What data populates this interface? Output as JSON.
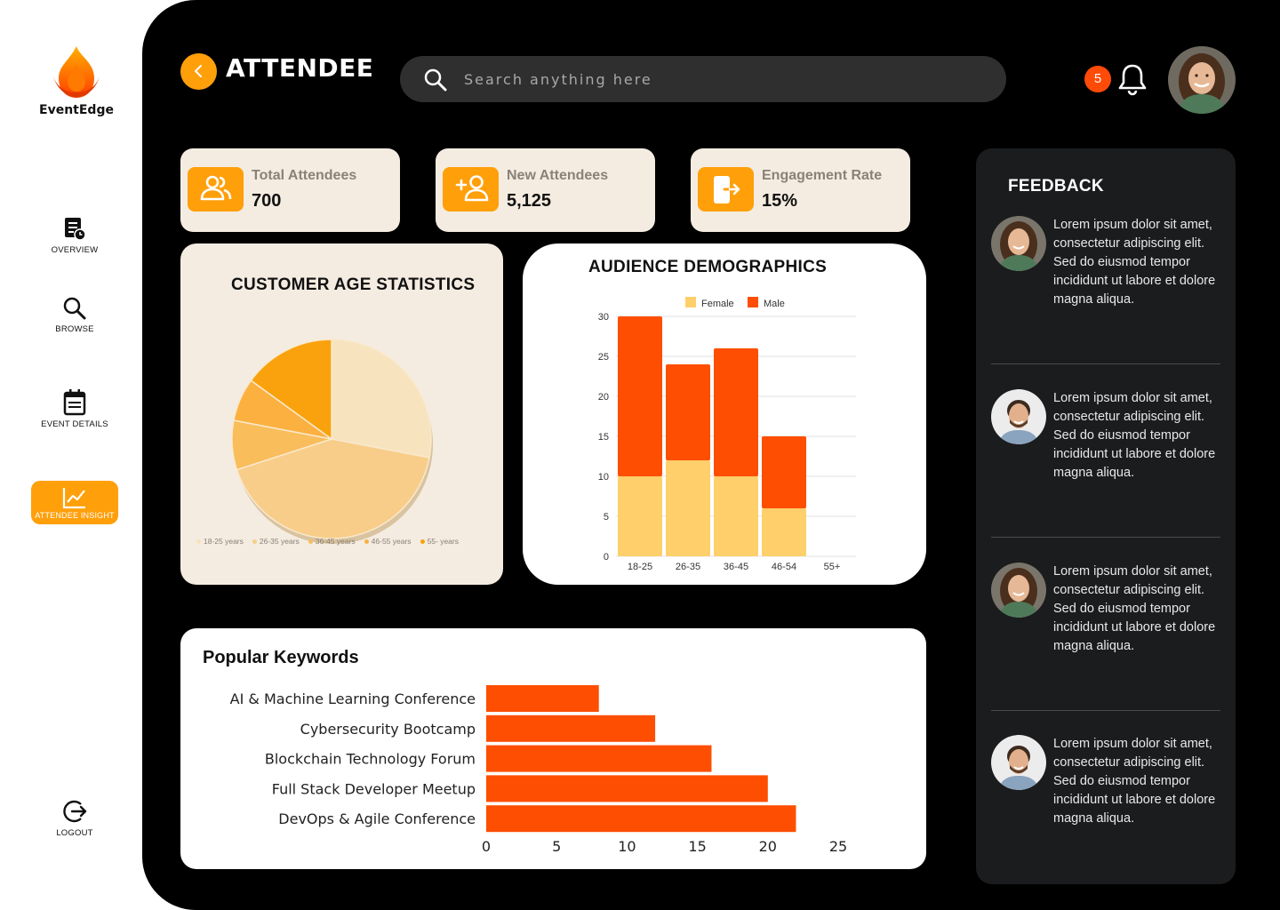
{
  "app": {
    "name": "EventEdge"
  },
  "sidebar": {
    "items": [
      {
        "label": "OVERVIEW"
      },
      {
        "label": "BROWSE"
      },
      {
        "label": "EVENT DETAILS"
      },
      {
        "label": "ATTENDEE INSIGHT",
        "active": true
      },
      {
        "label": "LOGOUT"
      }
    ]
  },
  "header": {
    "title": "ATTENDEE",
    "search_placeholder": "Search anything here",
    "notification_count": "5"
  },
  "stats": [
    {
      "label": "Total Attendees",
      "value": "700",
      "icon": "users-icon"
    },
    {
      "label": "New Attendees",
      "value": "5,125",
      "icon": "add-user-icon"
    },
    {
      "label": "Engagement Rate",
      "value": "15%",
      "icon": "exit-door-icon"
    }
  ],
  "age_panel": {
    "title": "CUSTOMER AGE STATISTICS"
  },
  "demo_panel": {
    "title": "AUDIENCE DEMOGRAPHICS"
  },
  "keywords_panel": {
    "title": "Popular Keywords"
  },
  "feedback": {
    "title": "FEEDBACK",
    "items": [
      {
        "text": "Lorem ipsum dolor sit amet, consectetur adipiscing elit. Sed do eiusmod tempor incididunt ut labore et dolore magna aliqua.",
        "avatar": "woman"
      },
      {
        "text": "Lorem ipsum dolor sit amet, consectetur adipiscing elit. Sed do eiusmod tempor incididunt ut labore et dolore magna aliqua.",
        "avatar": "man"
      },
      {
        "text": "Lorem ipsum dolor sit amet, consectetur adipiscing elit. Sed do eiusmod tempor incididunt ut labore et dolore magna aliqua.",
        "avatar": "woman"
      },
      {
        "text": "Lorem ipsum dolor sit amet, consectetur adipiscing elit. Sed do eiusmod tempor incididunt ut labore et dolore magna aliqua.",
        "avatar": "man"
      }
    ]
  },
  "colors": {
    "accent": "#ff9f0a",
    "alert": "#ff4a08",
    "card": "#f4ece1",
    "dark": "#000000"
  },
  "chart_data": [
    {
      "type": "pie",
      "categories": [
        "18-25 years",
        "26-35 years",
        "36-45 years",
        "46-55 years",
        "55-  years"
      ],
      "values": [
        28,
        42,
        8,
        7,
        15
      ],
      "colors": [
        "#f7e3bd",
        "#f8cd8a",
        "#f9bd5c",
        "#fbb040",
        "#f9a20d"
      ],
      "title": "",
      "legend": "bottom"
    },
    {
      "type": "bar",
      "stacked": true,
      "categories": [
        "18-25",
        "26-35",
        "36-45",
        "46-54",
        "55+"
      ],
      "series": [
        {
          "name": "Female",
          "values": [
            10,
            12,
            10,
            6,
            0
          ],
          "color": "#fecf6a"
        },
        {
          "name": "Male",
          "values": [
            20,
            12,
            16,
            9,
            0
          ],
          "color": "#fe4e01"
        }
      ],
      "ylim": [
        0,
        30
      ],
      "yticks": [
        0,
        5,
        10,
        15,
        20,
        25,
        30
      ],
      "legend": "top",
      "grid": true
    },
    {
      "type": "bar",
      "orientation": "horizontal",
      "categories": [
        "AI & Machine Learning Conference",
        "Cybersecurity Bootcamp",
        "Blockchain Technology Forum",
        "Full Stack Developer Meetup",
        "DevOps & Agile Conference"
      ],
      "values": [
        8,
        12,
        16,
        20,
        22
      ],
      "color": "#fe4e01",
      "xlim": [
        0,
        25
      ],
      "xticks": [
        0,
        5,
        10,
        15,
        20,
        25
      ]
    }
  ]
}
